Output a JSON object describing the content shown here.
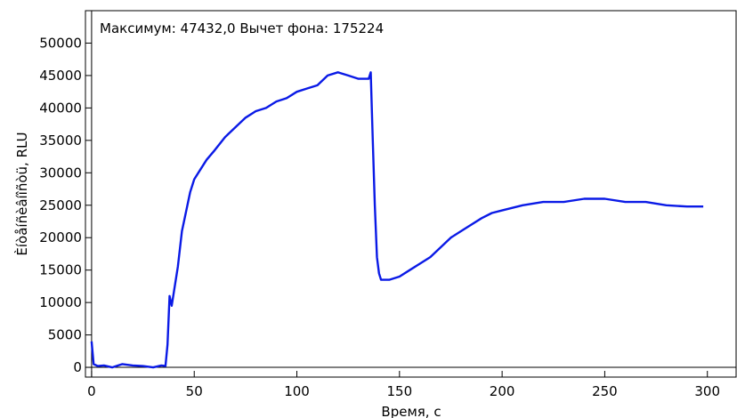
{
  "chart_data": {
    "type": "line",
    "info_text": "Максимум: 47432,0 Вычет фона: 175224",
    "xlabel": "Время, с",
    "ylabel": "Èíòåíñèâíîñòü, RLU",
    "xlim": [
      -3,
      314
    ],
    "ylim": [
      -1500,
      55000
    ],
    "xticks": [
      0,
      50,
      100,
      150,
      200,
      250,
      300
    ],
    "yticks": [
      0,
      5000,
      10000,
      15000,
      20000,
      25000,
      30000,
      35000,
      40000,
      45000,
      50000
    ],
    "grid": false,
    "series_color": "#0a1ae6",
    "series": [
      {
        "x": [
          0,
          1,
          3,
          6,
          10,
          15,
          20,
          25,
          30,
          34,
          36,
          37,
          38,
          39,
          40,
          42,
          44,
          46,
          48,
          50,
          53,
          56,
          60,
          65,
          70,
          75,
          80,
          85,
          90,
          95,
          100,
          105,
          110,
          115,
          120,
          125,
          130,
          135,
          136,
          137,
          138,
          139,
          140,
          141,
          145,
          150,
          155,
          160,
          165,
          170,
          175,
          180,
          185,
          190,
          195,
          200,
          210,
          220,
          230,
          240,
          250,
          260,
          270,
          280,
          290,
          298
        ],
        "y": [
          4000,
          500,
          200,
          300,
          0,
          500,
          300,
          200,
          0,
          300,
          200,
          3500,
          11000,
          9500,
          11500,
          15500,
          21000,
          24000,
          27000,
          29000,
          30500,
          32000,
          33500,
          35500,
          37000,
          38500,
          39500,
          40000,
          41000,
          41500,
          42500,
          43000,
          43500,
          45000,
          45500,
          45000,
          44500,
          44500,
          45500,
          35000,
          25000,
          17000,
          14500,
          13500,
          13500,
          14000,
          15000,
          16000,
          17000,
          18500,
          20000,
          21000,
          22000,
          23000,
          23800,
          24200,
          25000,
          25500,
          25500,
          26000,
          26000,
          25500,
          25500,
          25000,
          24800,
          24800
        ]
      }
    ]
  }
}
